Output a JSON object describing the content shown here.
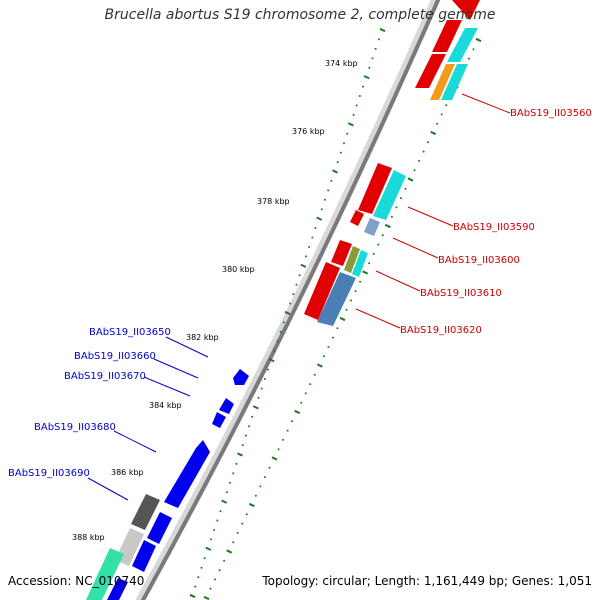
{
  "title": "Brucella abortus S19 chromosome 2, complete genome",
  "footer": {
    "accession": "Accession: NC_010740",
    "summary": "Topology: circular; Length: 1,161,449 bp; Genes: 1,051"
  },
  "colors": {
    "forward_label": "#cc0000",
    "reverse_label": "#0000cc",
    "backbone": "#8c8c8c",
    "tick": "#1e7a1e"
  },
  "tick_labels": [
    "374 kbp",
    "376 kbp",
    "378 kbp",
    "380 kbp",
    "382 kbp",
    "384 kbp",
    "386 kbp",
    "388 kbp"
  ],
  "forward_gene_labels": [
    "BAbS19_II03560",
    "BAbS19_II03590",
    "BAbS19_II03600",
    "BAbS19_II03610",
    "BAbS19_II03620"
  ],
  "reverse_gene_labels": [
    "BAbS19_II03650",
    "BAbS19_II03660",
    "BAbS19_II03670",
    "BAbS19_II03680",
    "BAbS19_II03690"
  ]
}
